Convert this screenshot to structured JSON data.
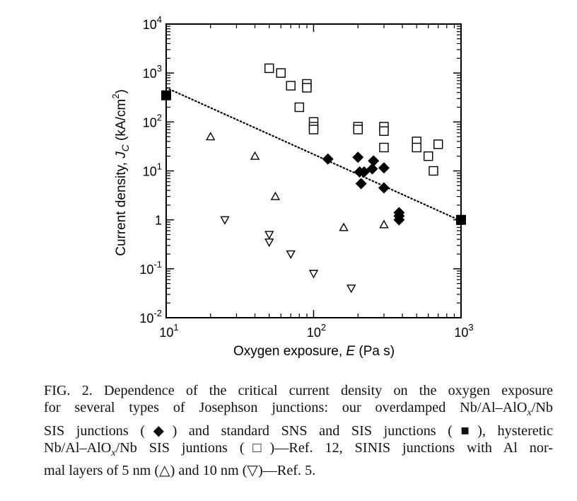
{
  "chart_data": {
    "type": "scatter",
    "xlabel": "Oxygen exposure, E (Pa s)",
    "ylabel": "Current density, J_C (kA/cm^2)",
    "x_scale": "log",
    "y_scale": "log",
    "xlim": [
      10,
      1000
    ],
    "ylim": [
      0.01,
      10000
    ],
    "x_ticks": [
      {
        "value": 10,
        "base": "10",
        "exp": "1"
      },
      {
        "value": 100,
        "base": "10",
        "exp": "2"
      },
      {
        "value": 1000,
        "base": "10",
        "exp": "3"
      }
    ],
    "y_ticks": [
      {
        "value": 0.01,
        "base": "10",
        "exp": "-2"
      },
      {
        "value": 0.1,
        "base": "10",
        "exp": "-1"
      },
      {
        "value": 1,
        "base": "1",
        "exp": ""
      },
      {
        "value": 10,
        "base": "10",
        "exp": "1"
      },
      {
        "value": 100,
        "base": "10",
        "exp": "2"
      },
      {
        "value": 1000,
        "base": "10",
        "exp": "3"
      },
      {
        "value": 10000,
        "base": "10",
        "exp": "4"
      }
    ],
    "grid": false,
    "series": [
      {
        "marker": "filled-diamond",
        "color": "#000000",
        "x": [
          125,
          200,
          205,
          210,
          220,
          250,
          255,
          300,
          300,
          380,
          380,
          380
        ],
        "y": [
          17.5,
          19,
          9.5,
          5.5,
          9.5,
          11,
          16,
          11.5,
          4.5,
          1.4,
          1.2,
          1.0
        ]
      },
      {
        "marker": "filled-square",
        "color": "#000000",
        "x": [
          10,
          1000
        ],
        "y": [
          350,
          1
        ]
      },
      {
        "marker": "open-square",
        "color": "#000000",
        "x": [
          50,
          60,
          70,
          80,
          90,
          90,
          100,
          100,
          100,
          200,
          200,
          300,
          300,
          300,
          500,
          500,
          600,
          650,
          700
        ],
        "y": [
          1250,
          1000,
          550,
          200,
          600,
          500,
          100,
          80,
          70,
          80,
          70,
          80,
          65,
          30,
          40,
          30,
          20,
          10,
          35
        ]
      },
      {
        "marker": "open-triangle-up",
        "color": "#000000",
        "x": [
          20,
          40,
          55,
          160,
          300
        ],
        "y": [
          50,
          20,
          3,
          0.7,
          0.8
        ]
      },
      {
        "marker": "open-triangle-down",
        "color": "#000000",
        "x": [
          25,
          50,
          50,
          70,
          100,
          180
        ],
        "y": [
          1,
          0.5,
          0.35,
          0.2,
          0.08,
          0.04
        ]
      },
      {
        "line": "dotted",
        "color": "#000000",
        "x": [
          10,
          1000
        ],
        "y": [
          500,
          0.95
        ]
      }
    ]
  },
  "caption": {
    "lines": [
      {
        "parts": [
          {
            "t": "FIG. 2. Dependence of the critical current density on the oxygen exposure"
          }
        ]
      },
      {
        "parts": [
          {
            "t": "for several types of Josephson junctions: our overdamped Nb/Al–AlO"
          },
          {
            "t": "x",
            "sub": true
          },
          {
            "t": "/Nb"
          }
        ]
      },
      {
        "parts": [
          {
            "t": "SIS junctions (◆) and standard SNS and SIS junctions (■), hysteretic"
          }
        ]
      },
      {
        "parts": [
          {
            "t": "Nb/Al–AlO"
          },
          {
            "t": "x",
            "sub": true
          },
          {
            "t": "/Nb SIS juntions (□)—Ref. 12, SINIS junctions with Al nor-"
          }
        ]
      },
      {
        "parts": [
          {
            "t": "mal layers of 5 nm (△) and 10 nm (▽)—Ref. 5."
          }
        ]
      }
    ]
  }
}
